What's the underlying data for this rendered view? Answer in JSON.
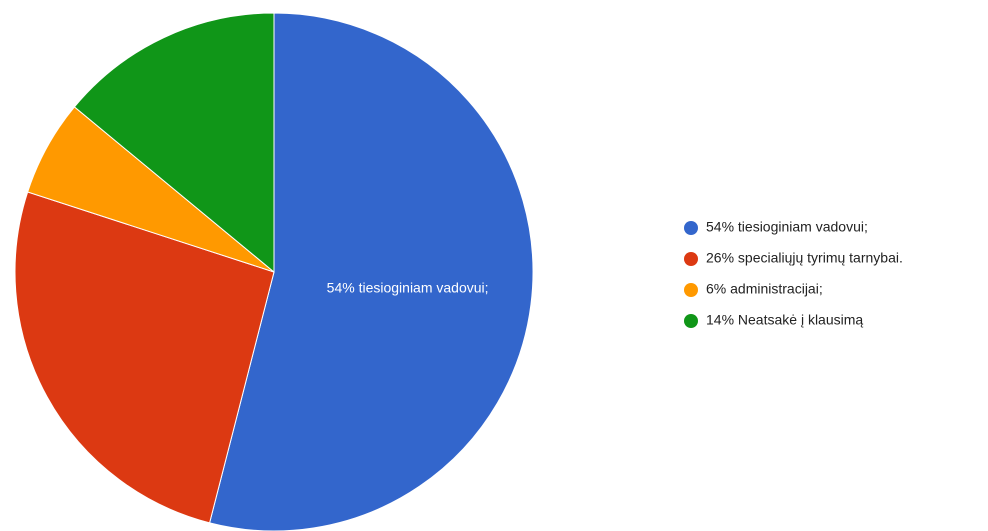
{
  "chart_data": {
    "type": "pie",
    "categories": [
      "54% tiesioginiam vadovui;",
      "26% specialiųjų tyrimų tarnybai.",
      "6% administracijai;",
      "14% Neatsakė į klausimą"
    ],
    "values": [
      54,
      26,
      6,
      14
    ],
    "colors": [
      "#3366cc",
      "#dc3912",
      "#ff9900",
      "#109618"
    ],
    "legend": "right"
  }
}
